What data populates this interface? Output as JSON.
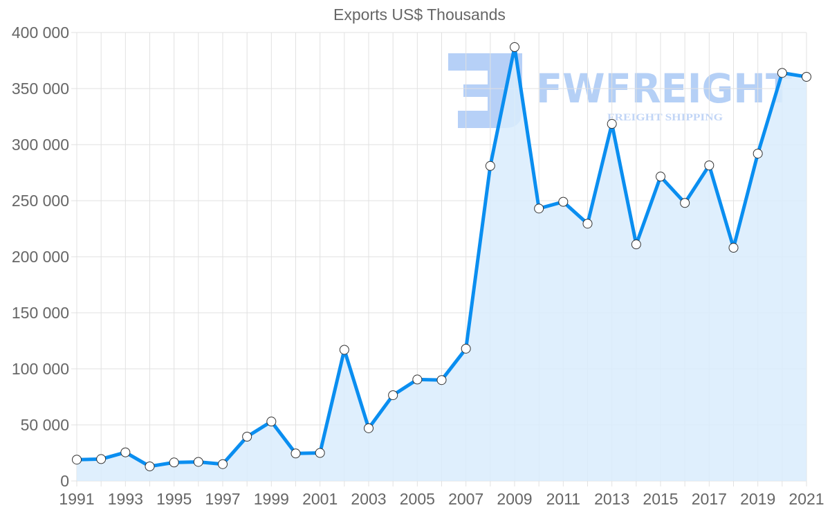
{
  "chart_data": {
    "type": "area",
    "title": "Exports US$ Thousands",
    "xlabel": "",
    "ylabel": "",
    "ylim": [
      0,
      400000
    ],
    "y_ticks": [
      "0",
      "50 000",
      "100 000",
      "150 000",
      "200 000",
      "250 000",
      "300 000",
      "350 000",
      "400 000"
    ],
    "x_tick_labels": [
      "1991",
      "1993",
      "1995",
      "1997",
      "1999",
      "2001",
      "2003",
      "2005",
      "2007",
      "2009",
      "2011",
      "2013",
      "2015",
      "2017",
      "2019",
      "2021"
    ],
    "grid": true,
    "legend": "none",
    "x": [
      1991,
      1992,
      1993,
      1994,
      1995,
      1996,
      1997,
      1998,
      1999,
      2000,
      2001,
      2002,
      2003,
      2004,
      2005,
      2006,
      2007,
      2008,
      2009,
      2010,
      2011,
      2012,
      2013,
      2014,
      2015,
      2016,
      2017,
      2018,
      2019,
      2020,
      2021
    ],
    "series": [
      {
        "name": "Exports US$ Thousands",
        "values": [
          19000,
          19500,
          25500,
          13000,
          16500,
          17000,
          15000,
          39500,
          53000,
          24500,
          25000,
          117000,
          47000,
          76500,
          90500,
          90000,
          118000,
          281000,
          387000,
          243000,
          249000,
          229500,
          318500,
          211000,
          271500,
          248000,
          281500,
          208000,
          292000,
          364000,
          360500
        ]
      }
    ],
    "colors": {
      "line": "#0a8ef0",
      "fill": "#d9ecfd",
      "marker_fill": "#ffffff",
      "marker_stroke": "#333333",
      "grid": "#e1e1e1",
      "text": "#666666"
    }
  },
  "watermark": {
    "brand": "FWFREIGHT",
    "tagline": "FREIGHT SHIPPING"
  }
}
